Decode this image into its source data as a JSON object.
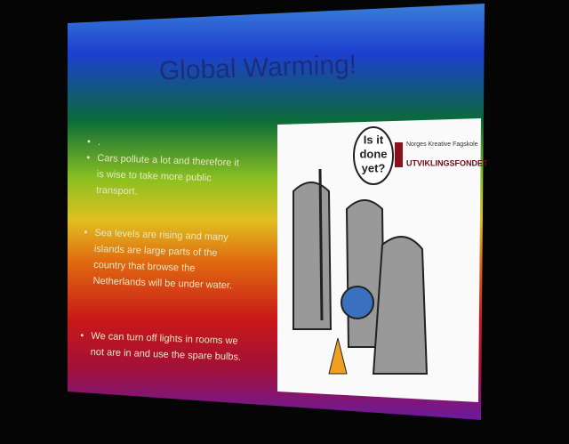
{
  "slide": {
    "title": "Global Warming!",
    "bullets": [
      [
        "."
      ],
      [
        "Cars pollute a lot and therefore it",
        "is wise to take more public",
        "transport."
      ],
      [
        "Sea levels are rising and many",
        "islands are large parts of the",
        "country that browse the",
        "Netherlands will be under water."
      ],
      [
        "We can turn off lights in rooms we",
        "not are in and use the spare bulbs."
      ]
    ],
    "cartoon": {
      "speech_bubble": [
        "Is it",
        "done",
        "yet?"
      ],
      "logo_lines": [
        "Norges Kreative Fagskole",
        "UTVIKLINGSFONDET"
      ]
    }
  }
}
